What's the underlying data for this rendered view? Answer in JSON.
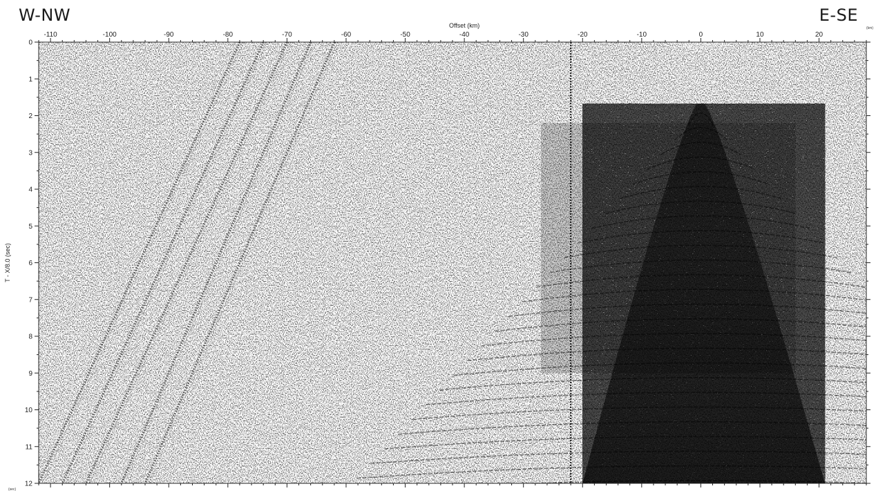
{
  "left_direction": "W-NW",
  "right_direction": "E-SE",
  "x_unit_note": "(km)",
  "y_unit_note": "(sec)",
  "colors": {
    "ink": "#000000",
    "background": "#ffffff",
    "frame": "#222222"
  },
  "chart_data": {
    "type": "heatmap",
    "description_type": "seismic refraction record section (wiggle/variable-density, grayscale)",
    "title": "",
    "xlabel": "Offset (km)",
    "ylabel": "T - X/8.0 (sec)",
    "xlim": [
      -112,
      28
    ],
    "ylim": [
      0,
      12
    ],
    "y_inverted": true,
    "x_ticks": [
      -110,
      -100,
      -90,
      -80,
      -70,
      -60,
      -50,
      -40,
      -30,
      -20,
      -10,
      0,
      10,
      20
    ],
    "x_tick_labels": [
      "-110",
      "-100",
      "-90",
      "-80",
      "-70",
      "-60",
      "-50",
      "-40",
      "-30",
      "-20",
      "-10",
      "0",
      "10",
      "20"
    ],
    "y_ticks": [
      0,
      1,
      2,
      3,
      4,
      5,
      6,
      7,
      8,
      9,
      10,
      11,
      12
    ],
    "y_tick_labels": [
      "0",
      "1",
      "2",
      "3",
      "4",
      "5",
      "6",
      "7",
      "8",
      "9",
      "10",
      "11",
      "12"
    ],
    "x_minor_step": 2,
    "y_minor_step": 0.5,
    "grid": false,
    "features": {
      "source_apex": {
        "x": 0,
        "t": 1.6
      },
      "left_flank_base": {
        "x": -20,
        "t": 12
      },
      "right_flank_base": {
        "x": 21,
        "t": 12
      },
      "noisy_trace_offset": -22,
      "oblique_arrivals": [
        {
          "x_top": -78,
          "x_bottom": -112,
          "t_top": 0,
          "t_bottom": 12
        },
        {
          "x_top": -74,
          "x_bottom": -108,
          "t_top": 0,
          "t_bottom": 12
        },
        {
          "x_top": -70,
          "x_bottom": -104,
          "t_top": 0,
          "t_bottom": 12
        },
        {
          "x_top": -66,
          "x_bottom": -98,
          "t_top": 0,
          "t_bottom": 12
        },
        {
          "x_top": -62,
          "x_bottom": -94,
          "t_top": 0,
          "t_bottom": 12
        }
      ]
    }
  }
}
